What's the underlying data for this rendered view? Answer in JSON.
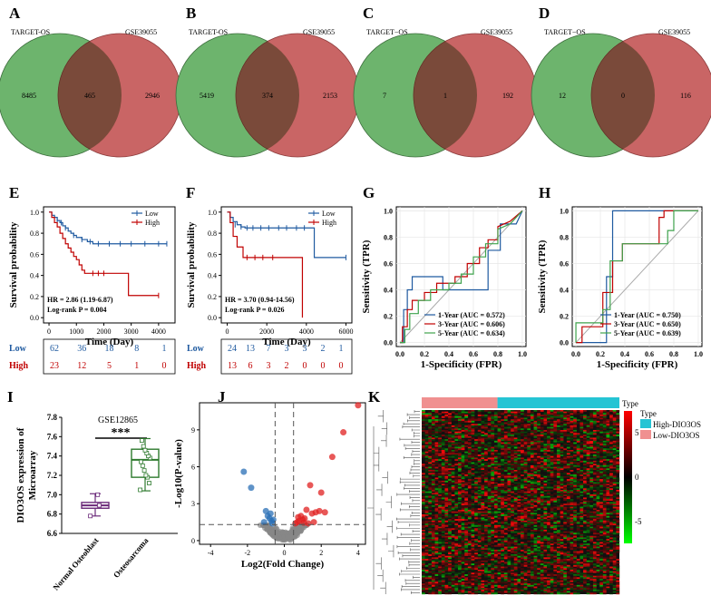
{
  "panel_letters": [
    "A",
    "B",
    "C",
    "D",
    "E",
    "F",
    "G",
    "H",
    "I",
    "J",
    "K"
  ],
  "colors": {
    "green": "#6db46d",
    "red": "#c96565",
    "overlap": "#7a4a3a",
    "blue": "#1f5aa0",
    "dred": "#c00000",
    "lgreen": "#3fa34d",
    "ggray": "#aaaaaa",
    "purple": "#6b2a7a",
    "dgreen": "#2e7a2e",
    "teal": "#25c4d4",
    "pink": "#f09090"
  },
  "chart_data": [
    {
      "type": "venn",
      "panel": "A",
      "left_label": "TARGET-OS",
      "right_label": "GSE39055",
      "left": "8485",
      "both": "465",
      "right": "2946"
    },
    {
      "type": "venn",
      "panel": "B",
      "left_label": "TARGET-OS",
      "right_label": "GSE39055",
      "left": "5419",
      "both": "374",
      "right": "2153"
    },
    {
      "type": "venn",
      "panel": "C",
      "left_label": "TARGET−OS",
      "right_label": "GSE39055",
      "left": "7",
      "both": "1",
      "right": "192"
    },
    {
      "type": "venn",
      "panel": "D",
      "left_label": "TARGET−OS",
      "right_label": "GSE39055",
      "left": "12",
      "both": "0",
      "right": "116"
    },
    {
      "type": "line",
      "panel": "E",
      "ylabel": "Survival probability",
      "xlabel": "Time (Day)",
      "x_ticks": [
        0,
        1000,
        2000,
        3000,
        4000
      ],
      "y_ticks": [
        "0.0",
        "0.2",
        "0.4",
        "0.6",
        "0.8",
        "1.0"
      ],
      "xlim": [
        -200,
        4600
      ],
      "legend": [
        "Low",
        "High"
      ],
      "series": [
        {
          "name": "Low",
          "x": [
            0,
            100,
            200,
            300,
            400,
            500,
            600,
            700,
            800,
            900,
            1000,
            1200,
            1400,
            1600,
            4300
          ],
          "y": [
            1,
            0.97,
            0.95,
            0.92,
            0.9,
            0.87,
            0.85,
            0.82,
            0.8,
            0.78,
            0.76,
            0.74,
            0.72,
            0.7,
            0.7
          ],
          "censor": [
            [
              300,
              0.92
            ],
            [
              450,
              0.9
            ],
            [
              600,
              0.85
            ],
            [
              900,
              0.78
            ],
            [
              1200,
              0.74
            ],
            [
              1500,
              0.72
            ],
            [
              1800,
              0.7
            ],
            [
              2200,
              0.7
            ],
            [
              2600,
              0.7
            ],
            [
              3000,
              0.7
            ],
            [
              3500,
              0.7
            ],
            [
              4000,
              0.7
            ],
            [
              4300,
              0.7
            ]
          ]
        },
        {
          "name": "High",
          "x": [
            0,
            100,
            200,
            300,
            400,
            500,
            600,
            700,
            800,
            900,
            1000,
            1100,
            1200,
            1300,
            1500,
            2900,
            4000
          ],
          "y": [
            1,
            0.95,
            0.9,
            0.86,
            0.8,
            0.75,
            0.7,
            0.66,
            0.62,
            0.58,
            0.55,
            0.5,
            0.45,
            0.42,
            0.42,
            0.21,
            0.21
          ],
          "censor": [
            [
              1600,
              0.42
            ],
            [
              1800,
              0.42
            ],
            [
              2000,
              0.42
            ],
            [
              4000,
              0.21
            ]
          ]
        }
      ],
      "hr": "HR = 2.86 (1.19-6.87)",
      "pval": "Log-rank P = 0.004",
      "risk_low": [
        "62",
        "36",
        "18",
        "8",
        "1"
      ],
      "risk_high": [
        "23",
        "12",
        "5",
        "1",
        "0"
      ]
    },
    {
      "type": "line",
      "panel": "F",
      "ylabel": "Survival probability",
      "xlabel": "Time (Day)",
      "x_ticks": [
        0,
        2000,
        4000,
        6000
      ],
      "y_ticks": [
        "0.0",
        "0.2",
        "0.4",
        "0.6",
        "0.8",
        "1.0"
      ],
      "xlim": [
        -300,
        6300
      ],
      "legend": [
        "Low",
        "High"
      ],
      "series": [
        {
          "name": "Low",
          "x": [
            0,
            150,
            300,
            500,
            700,
            900,
            4400,
            6000
          ],
          "y": [
            1,
            0.95,
            0.91,
            0.88,
            0.86,
            0.85,
            0.57,
            0.57
          ],
          "censor": [
            [
              400,
              0.88
            ],
            [
              700,
              0.86
            ],
            [
              1000,
              0.85
            ],
            [
              1300,
              0.85
            ],
            [
              1700,
              0.85
            ],
            [
              2100,
              0.85
            ],
            [
              2600,
              0.85
            ],
            [
              3000,
              0.85
            ],
            [
              3500,
              0.85
            ],
            [
              3900,
              0.85
            ],
            [
              6000,
              0.57
            ]
          ]
        },
        {
          "name": "High",
          "x": [
            0,
            150,
            300,
            500,
            800,
            3800,
            3800
          ],
          "y": [
            1,
            0.9,
            0.77,
            0.67,
            0.57,
            0.57,
            0
          ],
          "censor": [
            [
              1000,
              0.57
            ],
            [
              1400,
              0.57
            ],
            [
              1800,
              0.57
            ],
            [
              2300,
              0.57
            ]
          ]
        }
      ],
      "hr": "HR = 3.70 (0.94-14.56)",
      "pval": "Log-rank P = 0.026",
      "risk_low": [
        "24",
        "13",
        "7",
        "3",
        "3",
        "2",
        "1"
      ],
      "risk_high": [
        "13",
        "6",
        "3",
        "2",
        "0",
        "0",
        "0"
      ]
    },
    {
      "type": "line",
      "panel": "G",
      "ylabel": "Sensitivity (TPR)",
      "xlabel": "1-Specificity (FPR)",
      "ticks": [
        "0.0",
        "0.2",
        "0.4",
        "0.6",
        "0.8",
        "1.0"
      ],
      "series": [
        {
          "name": "1-Year (AUC = 0.572)",
          "x": [
            0,
            0.03,
            0.03,
            0.06,
            0.06,
            0.1,
            0.1,
            0.35,
            0.35,
            0.72,
            0.72,
            0.82,
            0.82,
            0.95,
            1
          ],
          "y": [
            0,
            0,
            0.25,
            0.25,
            0.4,
            0.4,
            0.5,
            0.5,
            0.4,
            0.4,
            0.7,
            0.7,
            0.9,
            0.9,
            1
          ]
        },
        {
          "name": "3-Year (AUC = 0.606)",
          "x": [
            0,
            0.02,
            0.02,
            0.06,
            0.06,
            0.1,
            0.1,
            0.2,
            0.2,
            0.3,
            0.3,
            0.45,
            0.45,
            0.55,
            0.55,
            0.65,
            0.65,
            0.72,
            0.72,
            0.8,
            0.8,
            0.9,
            1
          ],
          "y": [
            0,
            0,
            0.12,
            0.12,
            0.25,
            0.25,
            0.32,
            0.32,
            0.38,
            0.38,
            0.45,
            0.45,
            0.5,
            0.5,
            0.6,
            0.6,
            0.72,
            0.72,
            0.78,
            0.78,
            0.88,
            0.92,
            1
          ]
        },
        {
          "name": "5-Year (AUC = 0.634)",
          "x": [
            0,
            0.04,
            0.04,
            0.08,
            0.08,
            0.15,
            0.15,
            0.25,
            0.25,
            0.4,
            0.4,
            0.5,
            0.5,
            0.6,
            0.6,
            0.7,
            0.7,
            0.8,
            0.8,
            0.9,
            1
          ],
          "y": [
            0,
            0,
            0.1,
            0.1,
            0.22,
            0.22,
            0.32,
            0.32,
            0.4,
            0.4,
            0.45,
            0.45,
            0.52,
            0.52,
            0.65,
            0.65,
            0.75,
            0.75,
            0.86,
            0.9,
            1
          ]
        }
      ]
    },
    {
      "type": "line",
      "panel": "H",
      "ylabel": "Sensitivity (TPR)",
      "xlabel": "1-Specificity (FPR)",
      "ticks": [
        "0.0",
        "0.2",
        "0.4",
        "0.6",
        "0.8",
        "1.0"
      ],
      "series": [
        {
          "name": "1-Year (AUC = 0.750)",
          "x": [
            0,
            0.25,
            0.25,
            0.3,
            0.3,
            1
          ],
          "y": [
            0,
            0,
            0.5,
            0.5,
            1,
            1
          ]
        },
        {
          "name": "3-Year (AUC = 0.650)",
          "x": [
            0,
            0.05,
            0.05,
            0.22,
            0.22,
            0.3,
            0.3,
            0.38,
            0.38,
            0.68,
            0.68,
            0.72,
            0.72,
            1
          ],
          "y": [
            0,
            0,
            0.12,
            0.12,
            0.38,
            0.38,
            0.62,
            0.62,
            0.75,
            0.75,
            0.95,
            0.95,
            1,
            1
          ]
        },
        {
          "name": "5-Year (AUC = 0.639)",
          "x": [
            0,
            0,
            0.22,
            0.22,
            0.28,
            0.28,
            0.38,
            0.38,
            0.75,
            0.75,
            0.8,
            0.8,
            1
          ],
          "y": [
            0,
            0.15,
            0.15,
            0.25,
            0.25,
            0.62,
            0.62,
            0.75,
            0.75,
            0.85,
            0.85,
            1,
            1
          ]
        }
      ]
    },
    {
      "type": "box",
      "panel": "I",
      "title": "GSE12865",
      "ylabel_1": "DIO3OS expression of",
      "ylabel_2": "Microarray",
      "y_ticks": [
        "6.6",
        "6.8",
        "7.0",
        "7.2",
        "7.4",
        "7.6",
        "7.8"
      ],
      "ylim": [
        6.6,
        7.8
      ],
      "sig": "***",
      "categories": [
        "Normal Osteoblast",
        "Osteosarcoma"
      ],
      "boxes": [
        {
          "min": 6.78,
          "q1": 6.86,
          "median": 6.89,
          "q3": 6.92,
          "max": 7.01,
          "points": [
            6.78,
            6.89,
            7.0
          ]
        },
        {
          "min": 7.04,
          "q1": 7.18,
          "median": 7.36,
          "q3": 7.47,
          "max": 7.58,
          "points": [
            7.05,
            7.12,
            7.18,
            7.2,
            7.25,
            7.3,
            7.34,
            7.38,
            7.4,
            7.43,
            7.46,
            7.5,
            7.56
          ]
        }
      ]
    },
    {
      "type": "scatter",
      "panel": "J",
      "xlabel": "Log2(Fold Change)",
      "ylabel": "-Log10(P-value)",
      "x_ticks": [
        -4,
        -2,
        0,
        2,
        4
      ],
      "y_ticks": [
        0,
        3,
        6,
        9
      ],
      "xlim": [
        -4.6,
        4.4
      ],
      "ylim": [
        -0.3,
        11.2
      ],
      "vlines": [
        -0.5,
        0.5
      ],
      "hline": 1.3,
      "down": [
        [
          -2.2,
          5.6
        ],
        [
          -1.8,
          4.3
        ],
        [
          -0.9,
          2.0
        ],
        [
          -1.0,
          2.4
        ],
        [
          -0.8,
          1.8
        ],
        [
          -0.7,
          1.6
        ],
        [
          -0.6,
          1.7
        ],
        [
          -1.1,
          1.5
        ],
        [
          -0.65,
          1.4
        ],
        [
          -0.75,
          2.2
        ]
      ],
      "up": [
        [
          4.0,
          11.0
        ],
        [
          3.2,
          8.8
        ],
        [
          2.6,
          6.8
        ],
        [
          1.4,
          4.5
        ],
        [
          2.0,
          3.9
        ],
        [
          1.9,
          2.4
        ],
        [
          1.7,
          2.3
        ],
        [
          1.5,
          2.2
        ],
        [
          1.2,
          2.5
        ],
        [
          1.0,
          1.7
        ],
        [
          0.8,
          1.6
        ],
        [
          0.7,
          1.5
        ],
        [
          0.9,
          2.0
        ],
        [
          1.1,
          1.8
        ],
        [
          1.3,
          1.4
        ],
        [
          0.6,
          1.4
        ],
        [
          1.6,
          1.5
        ],
        [
          2.2,
          2.3
        ],
        [
          0.75,
          1.9
        ],
        [
          1.05,
          1.45
        ]
      ]
    },
    {
      "type": "heatmap",
      "panel": "K",
      "legend_title_1": "Type",
      "legend_title_2": "Type",
      "legend": [
        "High-DIO3OS",
        "Low-DIO3OS"
      ],
      "scale_ticks": [
        "5",
        "0",
        "-5"
      ],
      "rows": 120,
      "cols": 60,
      "low_cols": 23
    }
  ]
}
